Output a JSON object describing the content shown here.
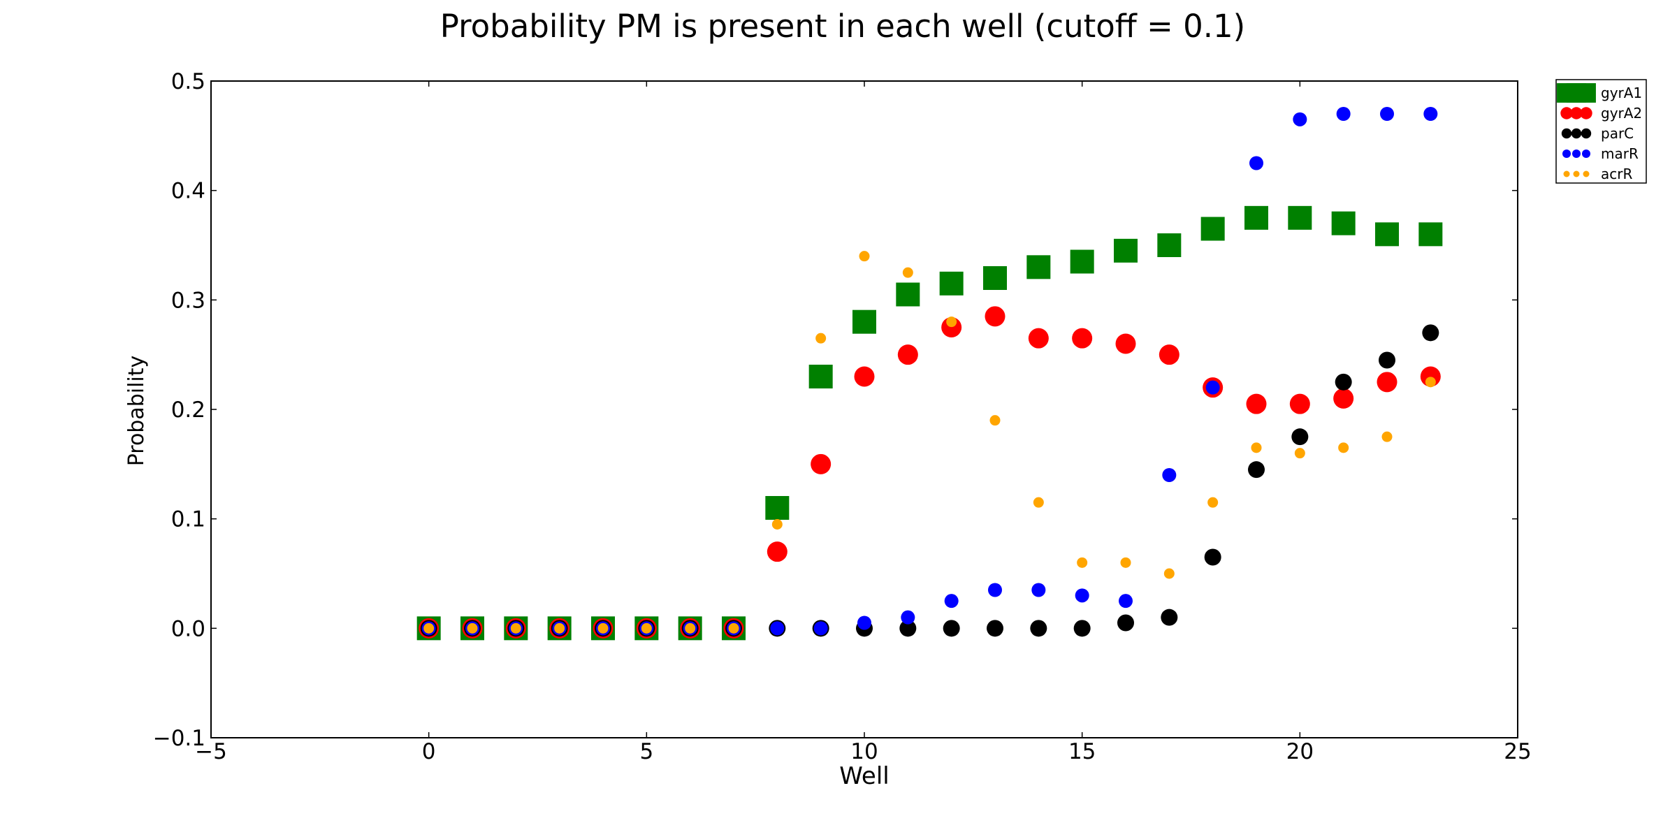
{
  "chart_data": {
    "type": "scatter",
    "title": "Probability PM is present in each well (cutoff = 0.1)",
    "xlabel": "Well",
    "ylabel": "Probability",
    "xlim": [
      -5,
      25
    ],
    "ylim": [
      -0.1,
      0.5
    ],
    "xticks": [
      -5,
      0,
      5,
      10,
      15,
      20,
      25
    ],
    "xtick_labels": [
      "−5",
      "0",
      "5",
      "10",
      "15",
      "20",
      "25"
    ],
    "yticks": [
      -0.1,
      0.0,
      0.1,
      0.2,
      0.3,
      0.4,
      0.5
    ],
    "ytick_labels": [
      "−0.1",
      "0.0",
      "0.1",
      "0.2",
      "0.3",
      "0.4",
      "0.5"
    ],
    "grid": false,
    "legend_position": "outside-top-right",
    "series": [
      {
        "name": "gyrA1",
        "marker": "square",
        "color": "#008000",
        "x": [
          0,
          1,
          2,
          3,
          4,
          5,
          6,
          7,
          8,
          9,
          10,
          11,
          12,
          13,
          14,
          15,
          16,
          17,
          18,
          19,
          20,
          21,
          22,
          23
        ],
        "y": [
          0,
          0,
          0,
          0,
          0,
          0,
          0,
          0,
          0.11,
          0.23,
          0.28,
          0.305,
          0.315,
          0.32,
          0.33,
          0.335,
          0.345,
          0.35,
          0.365,
          0.375,
          0.375,
          0.37,
          0.36,
          0.36
        ]
      },
      {
        "name": "gyrA2",
        "marker": "circle-large",
        "color": "#ff0000",
        "x": [
          0,
          1,
          2,
          3,
          4,
          5,
          6,
          7,
          8,
          9,
          10,
          11,
          12,
          13,
          14,
          15,
          16,
          17,
          18,
          19,
          20,
          21,
          22,
          23
        ],
        "y": [
          0,
          0,
          0,
          0,
          0,
          0,
          0,
          0,
          0.07,
          0.15,
          0.23,
          0.25,
          0.275,
          0.285,
          0.265,
          0.265,
          0.26,
          0.25,
          0.22,
          0.205,
          0.205,
          0.21,
          0.225,
          0.23
        ]
      },
      {
        "name": "parC",
        "marker": "circle-medium",
        "color": "#000000",
        "x": [
          0,
          1,
          2,
          3,
          4,
          5,
          6,
          7,
          8,
          9,
          10,
          11,
          12,
          13,
          14,
          15,
          16,
          17,
          18,
          19,
          20,
          21,
          22,
          23
        ],
        "y": [
          0,
          0,
          0,
          0,
          0,
          0,
          0,
          0,
          0,
          0,
          0,
          0,
          0,
          0,
          0,
          0,
          0.005,
          0.01,
          0.065,
          0.145,
          0.175,
          0.225,
          0.245,
          0.27
        ]
      },
      {
        "name": "marR",
        "marker": "circle-small",
        "color": "#0000ff",
        "x": [
          0,
          1,
          2,
          3,
          4,
          5,
          6,
          7,
          8,
          9,
          10,
          11,
          12,
          13,
          14,
          15,
          16,
          17,
          18,
          19,
          20,
          21,
          22,
          23
        ],
        "y": [
          0,
          0,
          0,
          0,
          0,
          0,
          0,
          0,
          0,
          0,
          0.005,
          0.01,
          0.025,
          0.035,
          0.035,
          0.03,
          0.025,
          0.14,
          0.22,
          0.425,
          0.465,
          0.47,
          0.47,
          0.47
        ]
      },
      {
        "name": "acrR",
        "marker": "circle-tiny",
        "color": "#ffa500",
        "x": [
          0,
          1,
          2,
          3,
          4,
          5,
          6,
          7,
          8,
          9,
          10,
          11,
          12,
          13,
          14,
          15,
          16,
          17,
          18,
          19,
          20,
          21,
          22,
          23
        ],
        "y": [
          0,
          0,
          0,
          0,
          0,
          0,
          0,
          0,
          0.095,
          0.265,
          0.34,
          0.325,
          0.28,
          0.19,
          0.115,
          0.06,
          0.06,
          0.05,
          0.115,
          0.165,
          0.16,
          0.165,
          0.175,
          0.225
        ]
      }
    ]
  }
}
